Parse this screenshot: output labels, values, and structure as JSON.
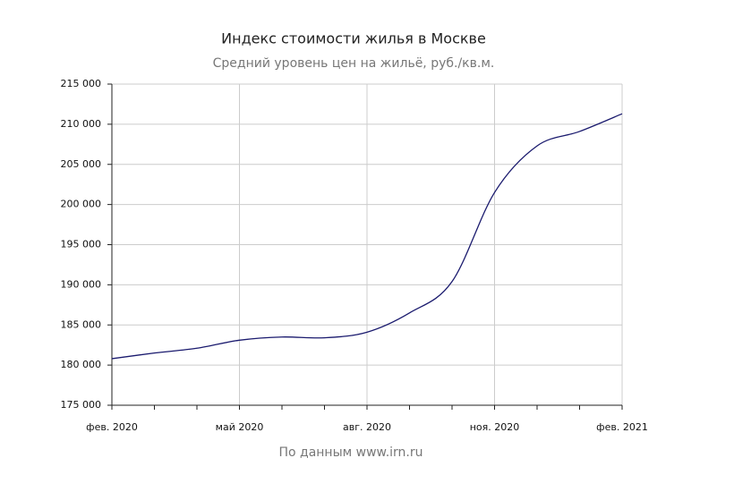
{
  "chart_data": {
    "type": "line",
    "title": "Индекс стоимости жилья в Москве",
    "subtitle": "Средний уровень цен на жильё, руб./кв.м.",
    "source": "По данным www.irn.ru",
    "categories": [
      "фев. 2020",
      null,
      null,
      "май 2020",
      null,
      null,
      "авг. 2020",
      null,
      null,
      "ноя. 2020",
      null,
      null,
      "фев. 2021"
    ],
    "values": [
      180800,
      181500,
      182100,
      183100,
      183500,
      183400,
      184100,
      186500,
      190400,
      201500,
      207300,
      209100,
      211300
    ],
    "color": "#1a1a6e",
    "ylim": [
      175000,
      215000
    ],
    "yticks": [
      {
        "value": 175000,
        "label": "175 000"
      },
      {
        "value": 180000,
        "label": "180 000"
      },
      {
        "value": 185000,
        "label": "185 000"
      },
      {
        "value": 190000,
        "label": "190 000"
      },
      {
        "value": 195000,
        "label": "195 000"
      },
      {
        "value": 200000,
        "label": "200 000"
      },
      {
        "value": 205000,
        "label": "205 000"
      },
      {
        "value": 210000,
        "label": "210 000"
      },
      {
        "value": 215000,
        "label": "215 000"
      }
    ],
    "grid": true
  }
}
